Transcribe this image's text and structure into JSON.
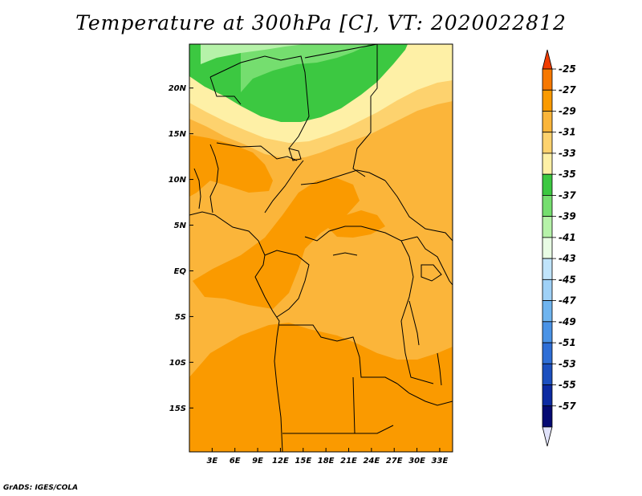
{
  "title": "Temperature at 300hPa [C], VT: 2020022812",
  "credit": "GrADS: IGES/COLA",
  "map": {
    "region": "Central Africa",
    "lon_range": [
      0,
      34.7
    ],
    "lat_range": [
      -19.8,
      24.8
    ],
    "lon_ticks": [
      "3E",
      "6E",
      "9E",
      "12E",
      "15E",
      "18E",
      "21E",
      "24E",
      "27E",
      "30E",
      "33E"
    ],
    "lat_ticks": [
      "20N",
      "15N",
      "10N",
      "5N",
      "EQ",
      "5S",
      "10S",
      "15S"
    ]
  },
  "legend": {
    "labels": [
      "-25",
      "-27",
      "-29",
      "-31",
      "-33",
      "-35",
      "-37",
      "-39",
      "-41",
      "-43",
      "-45",
      "-47",
      "-49",
      "-51",
      "-53",
      "-55",
      "-57"
    ],
    "colors": [
      "#f03c00",
      "#f77800",
      "#fa9a00",
      "#fbb53a",
      "#fdd26e",
      "#fef0a6",
      "#3cc841",
      "#75de6f",
      "#b6f2a9",
      "#e8fce4",
      "#c0e4fb",
      "#9fd1f7",
      "#6fb4ef",
      "#4a93e6",
      "#2e6ed6",
      "#1b4fbf",
      "#0c2aa2",
      "#050a73",
      "#e0e2fa"
    ]
  }
}
